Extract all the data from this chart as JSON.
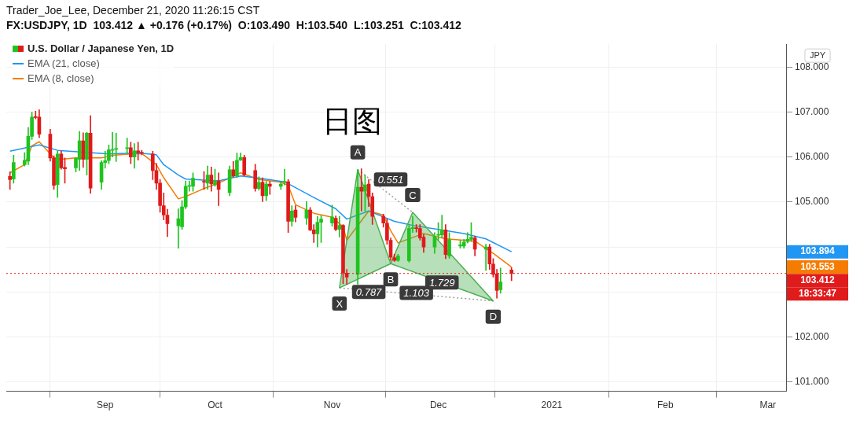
{
  "chart_data": {
    "type": "candlestick",
    "title": "Trader_Joe_Lee, December 21, 2020 11:26:15 CST",
    "subtitle": "FX:USDJPY, 1D  103.412 ▲ +0.176 (+0.17%)  O:103.490  H:103.540  L:103.251  C:103.412",
    "ylabel": "JPY",
    "xlim": [
      "2020-08-05",
      "2021-03-06"
    ],
    "xticks": [
      {
        "value": "2020-09-01",
        "label": "Sep"
      },
      {
        "value": "2020-10-01",
        "label": "Oct"
      },
      {
        "value": "2020-11-02",
        "label": "Nov"
      },
      {
        "value": "2020-12-01",
        "label": "Dec"
      },
      {
        "value": "2021-01-01",
        "label": "2021"
      },
      {
        "value": "2021-02-01",
        "label": "Feb"
      },
      {
        "value": "2021-03-01",
        "label": "Mar"
      }
    ],
    "ylim": [
      100.79,
      108.51
    ],
    "yticks": [
      {
        "value": 101,
        "label": "101.000"
      },
      {
        "value": 102,
        "label": "102.000"
      },
      {
        "value": 103,
        "label": null
      },
      {
        "value": 104,
        "label": null
      },
      {
        "value": 105,
        "label": "105.000"
      },
      {
        "value": 106,
        "label": "106.000"
      },
      {
        "value": 107,
        "label": "107.000"
      },
      {
        "value": 108,
        "label": "108.000"
      }
    ],
    "grid": true,
    "legend": "top left",
    "marker": "none",
    "ref_lines": [
      {
        "axis": "y",
        "value": 103.412,
        "color": "#e01b1b",
        "line_style": "dotted"
      }
    ],
    "annotations": [
      "日图",
      "103.894",
      "103.553",
      "103.412",
      "18:33:47",
      {
        "text": "X",
        "x": "2020-11-04",
        "y": 103.09
      },
      {
        "text": "A",
        "x": "2020-11-09",
        "y": 105.72
      },
      {
        "text": "B",
        "x": "2020-11-18",
        "y": 103.63
      },
      {
        "text": "C",
        "x": "2020-11-24",
        "y": 104.77
      },
      {
        "text": "D",
        "x": "2020-12-16",
        "y": 102.8
      },
      {
        "text": "0.551",
        "x": "2020-11-18",
        "y": 105.5
      },
      {
        "text": "0.787",
        "x": "2020-11-12",
        "y": 103.0
      },
      {
        "text": "1.729",
        "x": "2020-12-02",
        "y": 103.21
      },
      {
        "text": "1.103",
        "x": "2020-11-25",
        "y": 102.98
      }
    ],
    "series": [
      {
        "name": "U.S. Dollar / Japanese Yen, 1D",
        "x": [
          "2020-08-06",
          "2020-08-07",
          "2020-08-10",
          "2020-08-11",
          "2020-08-12",
          "2020-08-13",
          "2020-08-14",
          "2020-08-17",
          "2020-08-18",
          "2020-08-19",
          "2020-08-20",
          "2020-08-21",
          "2020-08-24",
          "2020-08-25",
          "2020-08-26",
          "2020-08-27",
          "2020-08-28",
          "2020-08-31",
          "2020-09-01",
          "2020-09-02",
          "2020-09-03",
          "2020-09-04",
          "2020-09-07",
          "2020-09-08",
          "2020-09-09",
          "2020-09-10",
          "2020-09-11",
          "2020-09-14",
          "2020-09-15",
          "2020-09-16",
          "2020-09-17",
          "2020-09-18",
          "2020-09-21",
          "2020-09-22",
          "2020-09-23",
          "2020-09-24",
          "2020-09-25",
          "2020-09-28",
          "2020-09-29",
          "2020-09-30",
          "2020-10-01",
          "2020-10-02",
          "2020-10-05",
          "2020-10-06",
          "2020-10-07",
          "2020-10-08",
          "2020-10-09",
          "2020-10-12",
          "2020-10-13",
          "2020-10-14",
          "2020-10-15",
          "2020-10-16",
          "2020-10-19",
          "2020-10-20",
          "2020-10-21",
          "2020-10-22",
          "2020-10-23",
          "2020-10-26",
          "2020-10-27",
          "2020-10-28",
          "2020-10-29",
          "2020-10-30",
          "2020-11-02",
          "2020-11-03",
          "2020-11-04",
          "2020-11-05",
          "2020-11-06",
          "2020-11-09",
          "2020-11-10",
          "2020-11-11",
          "2020-11-12",
          "2020-11-13",
          "2020-11-16",
          "2020-11-17",
          "2020-11-18",
          "2020-11-19",
          "2020-11-20",
          "2020-11-23",
          "2020-11-24",
          "2020-11-25",
          "2020-11-26",
          "2020-11-27",
          "2020-11-30",
          "2020-12-01",
          "2020-12-02",
          "2020-12-03",
          "2020-12-04",
          "2020-12-07",
          "2020-12-08",
          "2020-12-09",
          "2020-12-10",
          "2020-12-11",
          "2020-12-14",
          "2020-12-15",
          "2020-12-16",
          "2020-12-17",
          "2020-12-18",
          "2020-12-21"
        ],
        "ohlc": [
          [
            105.57,
            105.67,
            105.28,
            105.5
          ],
          [
            105.51,
            106.04,
            105.42,
            105.88
          ],
          [
            105.83,
            106.1,
            105.8,
            105.93
          ],
          [
            105.91,
            106.66,
            105.83,
            106.46
          ],
          [
            106.46,
            107.0,
            106.39,
            106.89
          ],
          [
            106.9,
            107.02,
            106.85,
            106.88
          ],
          [
            106.89,
            107.05,
            106.43,
            106.51
          ],
          [
            106.51,
            106.62,
            105.91,
            105.98
          ],
          [
            105.98,
            106.03,
            105.28,
            105.37
          ],
          [
            105.39,
            106.13,
            105.1,
            106.07
          ],
          [
            106.07,
            106.14,
            105.73,
            105.76
          ],
          [
            105.77,
            105.98,
            105.42,
            105.74
          ],
          [
            105.76,
            105.99,
            105.67,
            105.97
          ],
          [
            105.95,
            106.57,
            105.7,
            106.36
          ],
          [
            106.36,
            106.54,
            105.77,
            105.95
          ],
          [
            105.95,
            106.55,
            105.6,
            106.53
          ],
          [
            106.53,
            106.92,
            105.19,
            105.31
          ],
          [
            105.44,
            105.92,
            105.28,
            105.88
          ],
          [
            105.88,
            106.13,
            105.75,
            105.92
          ],
          [
            105.92,
            106.27,
            105.85,
            106.16
          ],
          [
            106.15,
            106.55,
            106.0,
            106.17
          ],
          [
            106.17,
            106.53,
            105.9,
            106.19
          ],
          [
            106.19,
            106.42,
            106.07,
            106.21
          ],
          [
            106.21,
            106.33,
            105.85,
            106.0
          ],
          [
            106.0,
            106.3,
            105.75,
            106.14
          ],
          [
            106.14,
            106.33,
            105.93,
            106.1
          ],
          [
            106.1,
            106.15,
            106.05,
            106.09
          ],
          [
            106.07,
            106.13,
            105.5,
            105.7
          ],
          [
            105.7,
            105.86,
            105.28,
            105.42
          ],
          [
            105.42,
            105.5,
            104.77,
            104.92
          ],
          [
            104.92,
            105.2,
            104.6,
            104.71
          ],
          [
            104.71,
            104.84,
            104.23,
            104.52
          ],
          [
            104.47,
            104.85,
            103.97,
            104.63
          ],
          [
            104.45,
            105.03,
            104.39,
            104.89
          ],
          [
            104.89,
            105.47,
            104.85,
            105.35
          ],
          [
            105.35,
            105.47,
            105.24,
            105.36
          ],
          [
            105.35,
            105.65,
            105.24,
            105.53
          ],
          [
            105.46,
            105.68,
            105.28,
            105.44
          ],
          [
            105.42,
            105.8,
            105.28,
            105.6
          ],
          [
            105.6,
            105.78,
            105.24,
            105.4
          ],
          [
            105.38,
            105.73,
            105.35,
            105.47
          ],
          [
            105.47,
            105.65,
            104.92,
            105.28
          ],
          [
            105.21,
            105.8,
            105.14,
            105.72
          ],
          [
            105.72,
            105.9,
            105.56,
            105.58
          ],
          [
            105.58,
            106.09,
            105.54,
            105.93
          ],
          [
            105.93,
            106.09,
            105.92,
            105.99
          ],
          [
            105.99,
            106.04,
            105.58,
            105.6
          ],
          [
            105.7,
            105.84,
            105.24,
            105.3
          ],
          [
            105.3,
            105.56,
            105.26,
            105.44
          ],
          [
            105.44,
            105.54,
            105.01,
            105.14
          ],
          [
            105.14,
            105.46,
            105.03,
            105.4
          ],
          [
            105.4,
            105.46,
            105.17,
            105.35
          ],
          [
            105.35,
            105.46,
            105.28,
            105.4
          ],
          [
            105.44,
            105.73,
            105.38,
            105.46
          ],
          [
            105.45,
            105.5,
            104.32,
            104.57
          ],
          [
            104.57,
            104.92,
            104.46,
            104.8
          ],
          [
            104.82,
            104.92,
            104.56,
            104.66
          ],
          [
            104.64,
            105.01,
            104.5,
            104.82
          ],
          [
            104.82,
            104.88,
            104.36,
            104.38
          ],
          [
            104.38,
            104.5,
            104.1,
            104.29
          ],
          [
            104.29,
            104.68,
            104.0,
            104.55
          ],
          [
            104.55,
            104.7,
            104.1,
            104.62
          ],
          [
            104.53,
            104.93,
            104.46,
            104.67
          ],
          [
            104.64,
            104.69,
            104.36,
            104.39
          ],
          [
            104.39,
            104.68,
            104.22,
            104.48
          ],
          [
            104.48,
            104.5,
            103.18,
            103.42
          ],
          [
            103.42,
            103.5,
            103.17,
            103.33
          ],
          [
            103.39,
            105.72,
            103.17,
            105.33
          ],
          [
            105.33,
            105.74,
            104.8,
            105.24
          ],
          [
            105.24,
            105.6,
            104.8,
            105.38
          ],
          [
            105.4,
            105.5,
            104.9,
            105.12
          ],
          [
            105.12,
            105.2,
            104.5,
            104.68
          ],
          [
            104.68,
            104.73,
            104.44,
            104.53
          ],
          [
            104.53,
            104.62,
            104.06,
            104.15
          ],
          [
            104.15,
            104.2,
            103.7,
            103.77
          ],
          [
            103.76,
            103.84,
            103.68,
            103.7
          ],
          [
            103.7,
            103.84,
            103.68,
            103.8
          ],
          [
            103.69,
            104.48,
            103.66,
            104.41
          ],
          [
            104.41,
            104.68,
            104.32,
            104.42
          ],
          [
            104.42,
            104.5,
            104.33,
            104.41
          ],
          [
            104.41,
            104.5,
            104.15,
            104.2
          ],
          [
            104.22,
            104.28,
            103.88,
            104.0
          ],
          [
            104.0,
            104.32,
            103.86,
            104.23
          ],
          [
            104.26,
            104.54,
            104.15,
            104.27
          ],
          [
            104.27,
            104.71,
            104.2,
            104.38
          ],
          [
            104.38,
            104.5,
            103.74,
            103.83
          ],
          [
            103.8,
            104.32,
            103.75,
            104.16
          ],
          [
            104.02,
            104.15,
            103.97,
            104.05
          ],
          [
            104.02,
            104.17,
            103.97,
            104.11
          ],
          [
            104.12,
            104.32,
            104.09,
            104.17
          ],
          [
            104.17,
            104.54,
            104.12,
            104.22
          ],
          [
            104.2,
            104.24,
            103.8,
            103.95
          ],
          [
            103.95,
            104.06,
            103.48,
            104.0
          ],
          [
            104.0,
            104.06,
            103.5,
            103.62
          ],
          [
            103.62,
            103.74,
            103.33,
            103.39
          ],
          [
            103.4,
            103.5,
            102.86,
            103.03
          ],
          [
            103.05,
            103.53,
            102.97,
            103.22
          ],
          [
            103.49,
            103.54,
            103.251,
            103.412
          ]
        ],
        "colors": [
          "#e01b1b",
          "#1fc41f",
          "#1fc41f",
          "#1fc41f",
          "#1fc41f",
          "#e01b1b",
          "#e01b1b",
          "#e01b1b",
          "#e01b1b",
          "#1fc41f",
          "#e01b1b",
          "#e01b1b",
          "#1fc41f",
          "#1fc41f",
          "#e01b1b",
          "#1fc41f",
          "#e01b1b",
          "#1fc41f",
          "#1fc41f",
          "#1fc41f",
          "#1fc41f",
          "#1fc41f",
          "#1fc41f",
          "#e01b1b",
          "#1fc41f",
          "#e01b1b",
          "#e01b1b",
          "#e01b1b",
          "#e01b1b",
          "#e01b1b",
          "#e01b1b",
          "#e01b1b",
          "#1fc41f",
          "#1fc41f",
          "#1fc41f",
          "#1fc41f",
          "#1fc41f",
          "#e01b1b",
          "#1fc41f",
          "#e01b1b",
          "#1fc41f",
          "#e01b1b",
          "#1fc41f",
          "#e01b1b",
          "#1fc41f",
          "#1fc41f",
          "#e01b1b",
          "#e01b1b",
          "#1fc41f",
          "#e01b1b",
          "#1fc41f",
          "#e01b1b",
          "#1fc41f",
          "#1fc41f",
          "#e01b1b",
          "#1fc41f",
          "#e01b1b",
          "#1fc41f",
          "#e01b1b",
          "#e01b1b",
          "#1fc41f",
          "#1fc41f",
          "#1fc41f",
          "#e01b1b",
          "#1fc41f",
          "#e01b1b",
          "#e01b1b",
          "#1fc41f",
          "#e01b1b",
          "#1fc41f",
          "#e01b1b",
          "#e01b1b",
          "#e01b1b",
          "#e01b1b",
          "#e01b1b",
          "#e01b1b",
          "#1fc41f",
          "#1fc41f",
          "#1fc41f",
          "#e01b1b",
          "#e01b1b",
          "#e01b1b",
          "#1fc41f",
          "#1fc41f",
          "#1fc41f",
          "#e01b1b",
          "#1fc41f",
          "#1fc41f",
          "#1fc41f",
          "#1fc41f",
          "#1fc41f",
          "#e01b1b",
          "#1fc41f",
          "#e01b1b",
          "#e01b1b",
          "#e01b1b",
          "#1fc41f",
          "#e01b1b"
        ]
      },
      {
        "name": "EMA (21, close)",
        "type": "line",
        "color": "#2196f3",
        "x": [
          "2020-08-06",
          "2020-08-14",
          "2020-08-19",
          "2020-09-02",
          "2020-09-10",
          "2020-09-15",
          "2020-09-17",
          "2020-09-21",
          "2020-09-23",
          "2020-10-02",
          "2020-10-08",
          "2020-10-13",
          "2020-10-20",
          "2020-10-28",
          "2020-11-03",
          "2020-11-06",
          "2020-11-12",
          "2020-11-19",
          "2020-11-24",
          "2020-12-01",
          "2020-12-08",
          "2020-12-14",
          "2020-12-21"
        ],
        "values": [
          106.13,
          106.27,
          106.15,
          106.07,
          106.09,
          106.05,
          105.83,
          105.6,
          105.51,
          105.47,
          105.58,
          105.53,
          105.45,
          105.1,
          104.85,
          104.62,
          104.8,
          104.57,
          104.48,
          104.39,
          104.3,
          104.18,
          103.894
        ]
      },
      {
        "name": "EMA (8, close)",
        "type": "line",
        "color": "#f57c00",
        "x": [
          "2020-08-06",
          "2020-08-10",
          "2020-08-12",
          "2020-08-14",
          "2020-08-18",
          "2020-08-20",
          "2020-08-24",
          "2020-08-31",
          "2020-09-03",
          "2020-09-08",
          "2020-09-11",
          "2020-09-15",
          "2020-09-17",
          "2020-09-21",
          "2020-09-23",
          "2020-09-28",
          "2020-10-02",
          "2020-10-08",
          "2020-10-13",
          "2020-10-19",
          "2020-10-21",
          "2020-10-23",
          "2020-10-28",
          "2020-11-02",
          "2020-11-05",
          "2020-11-06",
          "2020-11-12",
          "2020-11-16",
          "2020-11-18",
          "2020-11-20",
          "2020-11-27",
          "2020-12-03",
          "2020-12-08",
          "2020-12-11",
          "2020-12-16",
          "2020-12-21"
        ],
        "values": [
          105.65,
          105.83,
          106.25,
          106.34,
          105.98,
          105.95,
          105.98,
          105.98,
          106.04,
          106.07,
          106.08,
          105.83,
          105.54,
          105.07,
          105.12,
          105.3,
          105.42,
          105.65,
          105.5,
          105.44,
          105.37,
          104.94,
          104.75,
          104.66,
          104.45,
          104.15,
          104.8,
          104.71,
          104.36,
          104.09,
          104.3,
          104.18,
          104.15,
          104.13,
          103.86,
          103.553
        ]
      },
      {
        "type": "area",
        "color": "#4caf50",
        "x": [
          "2020-11-04",
          "2020-11-09",
          "2020-11-18",
          "2020-11-04"
        ],
        "values": [
          103.09,
          105.72,
          103.63,
          103.09
        ]
      },
      {
        "type": "area",
        "color": "#4caf50",
        "x": [
          "2020-11-18",
          "2020-11-24",
          "2020-12-16",
          "2020-11-18"
        ],
        "values": [
          103.63,
          104.77,
          102.8,
          103.63
        ]
      },
      {
        "type": "line",
        "color": "#9e9e9e",
        "line_style": "dotted",
        "x": [
          "2020-11-09",
          "2020-11-24"
        ],
        "values": [
          105.72,
          104.77
        ]
      },
      {
        "type": "line",
        "color": "#9e9e9e",
        "line_style": "dotted",
        "x": [
          "2020-11-04",
          "2020-12-16"
        ],
        "values": [
          103.09,
          102.8
        ]
      }
    ]
  }
}
